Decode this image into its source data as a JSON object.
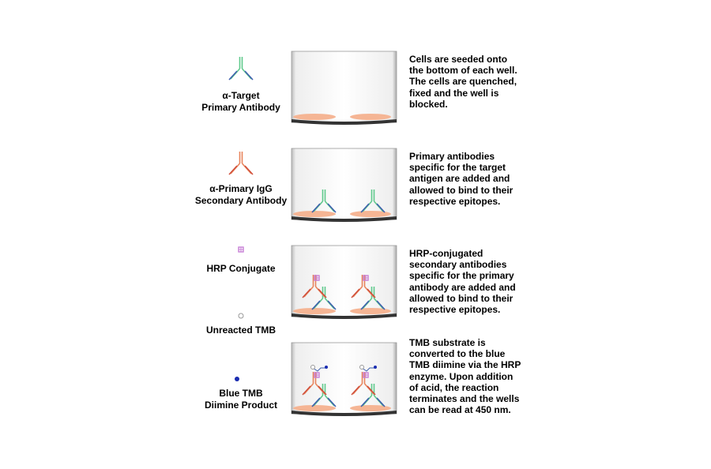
{
  "legend": {
    "primary_antibody": "α-Target\nPrimary Antibody",
    "secondary_antibody": "α-Primary IgG\nSecondary Antibody",
    "hrp": "HRP Conjugate",
    "tmb": "Unreacted TMB",
    "diimine": "Blue TMB\nDiimine Product"
  },
  "steps": [
    {
      "text": "Cells are seeded onto the bottom of each well. The cells are quenched, fixed and the well is blocked."
    },
    {
      "text": "Primary antibodies specific for the target antigen are added and allowed to bind to their respective epitopes."
    },
    {
      "text": "HRP-conjugated secondary antibodies specific for the primary antibody are added and allowed to bind to their respective epitopes."
    },
    {
      "text": "TMB substrate is converted to the blue TMB diimine via the HRP enzyme. Upon addition of acid, the reaction terminates and the wells can be read at 450 nm."
    }
  ],
  "colors": {
    "primary_heavy": "#5fc98c",
    "primary_light": "#3e5fae",
    "secondary_heavy": "#e8845c",
    "secondary_light": "#d0503c",
    "hrp": "#c77fd6",
    "diimine": "#1a2cb0",
    "cells": "#f5b594"
  }
}
